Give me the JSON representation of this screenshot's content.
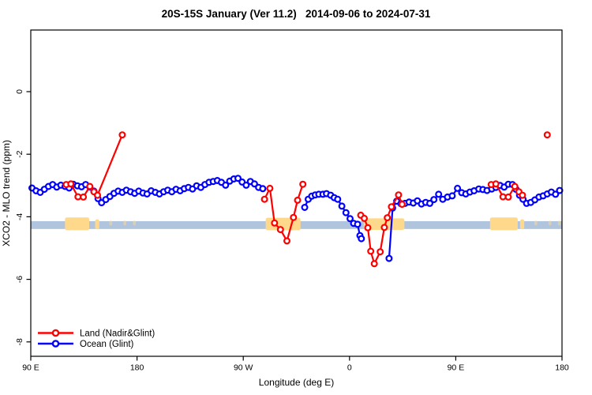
{
  "title": "20S-15S January (Ver 11.2)   2014-09-06 to 2024-07-31",
  "chart_data": {
    "type": "line",
    "title": "20S-15S January (Ver 11.2)   2014-09-06 to 2024-07-31",
    "xlabel": "Longitude (deg E)",
    "ylabel": "XCO2 - MLO trend (ppm)",
    "x_axis": {
      "range": [
        90,
        540
      ],
      "ticks": [
        {
          "lon": 90,
          "label": "90 E"
        },
        {
          "lon": 180,
          "label": "180"
        },
        {
          "lon": 270,
          "label": "90 W"
        },
        {
          "lon": 360,
          "label": "0"
        },
        {
          "lon": 450,
          "label": "90 E"
        },
        {
          "lon": 540,
          "label": "180"
        }
      ]
    },
    "y_axis": {
      "range": [
        -8.46,
        1.97
      ],
      "ticks": [
        0,
        -2,
        -4,
        -6,
        -8
      ]
    },
    "grid": "off",
    "legend_position": "bottom-left-inside",
    "legend": [
      {
        "label": "Land (Nadir&Glint)",
        "color": "#ff0000"
      },
      {
        "label": "Ocean (Glint)",
        "color": "#0000ff"
      }
    ],
    "band": {
      "color": "#b0c4de",
      "top": -4.14,
      "bottom": -4.39,
      "from": 90,
      "to": 540
    },
    "land_shading": {
      "color": "#ffd98b",
      "regions": [
        {
          "from": 119,
          "to": 139.5,
          "top": -4.02,
          "bottom": -4.43,
          "faint": false
        },
        {
          "from": 144.5,
          "to": 148,
          "top": -4.08,
          "bottom": -4.4,
          "faint": false
        },
        {
          "from": 156.5,
          "to": 159,
          "top": -4.12,
          "bottom": -4.28,
          "faint": true
        },
        {
          "from": 168.5,
          "to": 171,
          "top": -4.12,
          "bottom": -4.28,
          "faint": true
        },
        {
          "from": 176.5,
          "to": 179,
          "top": -4.12,
          "bottom": -4.28,
          "faint": true
        },
        {
          "from": 289,
          "to": 318.5,
          "top": -4.03,
          "bottom": -4.43,
          "faint": false
        },
        {
          "from": 372,
          "to": 406.5,
          "top": -4.05,
          "bottom": -4.42,
          "faint": false
        },
        {
          "from": 479,
          "to": 502.5,
          "top": -4.02,
          "bottom": -4.43,
          "faint": false
        },
        {
          "from": 504.5,
          "to": 508,
          "top": -4.08,
          "bottom": -4.4,
          "faint": false
        },
        {
          "from": 516.5,
          "to": 519,
          "top": -4.12,
          "bottom": -4.28,
          "faint": true
        },
        {
          "from": 528.5,
          "to": 531,
          "top": -4.12,
          "bottom": -4.28,
          "faint": true
        },
        {
          "from": 536.5,
          "to": 539,
          "top": -4.12,
          "bottom": -4.28,
          "faint": true
        }
      ]
    },
    "series": [
      {
        "name": "Ocean (Glint)",
        "color": "#0000ff",
        "segments": [
          [
            [
              91,
              -3.08
            ],
            [
              94.5,
              -3.17
            ],
            [
              98,
              -3.22
            ],
            [
              101.5,
              -3.12
            ],
            [
              105,
              -3.03
            ],
            [
              108.5,
              -2.97
            ],
            [
              112,
              -3.05
            ],
            [
              115.5,
              -2.99
            ],
            [
              119,
              -3.03
            ],
            [
              122.5,
              -3.08
            ],
            [
              126,
              -2.96
            ],
            [
              129.5,
              -3.01
            ],
            [
              133,
              -3.04
            ],
            [
              136.5,
              -2.97
            ],
            [
              140,
              -3.05
            ],
            [
              143.5,
              -3.18
            ],
            [
              147,
              -3.42
            ],
            [
              150,
              -3.55
            ],
            [
              153.5,
              -3.45
            ],
            [
              157,
              -3.35
            ],
            [
              160.5,
              -3.25
            ],
            [
              164,
              -3.18
            ],
            [
              167.5,
              -3.22
            ],
            [
              171,
              -3.15
            ],
            [
              174.5,
              -3.2
            ],
            [
              178,
              -3.25
            ],
            [
              181.5,
              -3.18
            ],
            [
              185,
              -3.24
            ],
            [
              188.5,
              -3.27
            ],
            [
              192,
              -3.17
            ],
            [
              195.5,
              -3.22
            ],
            [
              199,
              -3.27
            ],
            [
              202.5,
              -3.2
            ],
            [
              206,
              -3.15
            ],
            [
              209.5,
              -3.2
            ],
            [
              213,
              -3.12
            ],
            [
              216.5,
              -3.17
            ],
            [
              220,
              -3.1
            ],
            [
              223.5,
              -3.06
            ],
            [
              227,
              -3.11
            ],
            [
              230.5,
              -3.01
            ],
            [
              234,
              -3.06
            ],
            [
              237.5,
              -2.97
            ],
            [
              241,
              -2.9
            ],
            [
              244.5,
              -2.87
            ],
            [
              248,
              -2.84
            ],
            [
              251.5,
              -2.9
            ],
            [
              255,
              -2.99
            ],
            [
              258.5,
              -2.86
            ],
            [
              262,
              -2.79
            ],
            [
              265.5,
              -2.77
            ],
            [
              269,
              -2.89
            ],
            [
              272.5,
              -2.99
            ],
            [
              276,
              -2.87
            ],
            [
              279.5,
              -2.95
            ],
            [
              283,
              -3.06
            ],
            [
              286.5,
              -3.1
            ]
          ],
          [
            [
              322,
              -3.7
            ],
            [
              325,
              -3.44
            ],
            [
              328,
              -3.34
            ],
            [
              331,
              -3.3
            ],
            [
              334,
              -3.28
            ],
            [
              337.5,
              -3.28
            ],
            [
              340.5,
              -3.26
            ],
            [
              344,
              -3.31
            ],
            [
              347,
              -3.39
            ],
            [
              350,
              -3.44
            ],
            [
              353.5,
              -3.66
            ],
            [
              357,
              -3.87
            ],
            [
              360.5,
              -4.06
            ],
            [
              363.5,
              -4.21
            ],
            [
              366.8,
              -4.24
            ],
            [
              368.8,
              -4.6
            ],
            [
              370,
              -4.7
            ]
          ],
          [
            [
              393.5,
              -5.33
            ],
            [
              396.5,
              -3.72
            ],
            [
              400,
              -3.5
            ],
            [
              403.5,
              -3.58
            ],
            [
              407,
              -3.57
            ],
            [
              410.5,
              -3.53
            ],
            [
              414,
              -3.56
            ],
            [
              417.5,
              -3.49
            ],
            [
              421,
              -3.59
            ],
            [
              424.5,
              -3.54
            ],
            [
              428,
              -3.57
            ],
            [
              431.5,
              -3.45
            ],
            [
              435.5,
              -3.28
            ],
            [
              439,
              -3.44
            ],
            [
              443,
              -3.37
            ],
            [
              447,
              -3.33
            ],
            [
              451.5,
              -3.09
            ],
            [
              455,
              -3.23
            ],
            [
              458.5,
              -3.27
            ],
            [
              462,
              -3.21
            ],
            [
              465.5,
              -3.17
            ],
            [
              469.5,
              -3.11
            ],
            [
              473,
              -3.13
            ],
            [
              476.5,
              -3.16
            ],
            [
              480.5,
              -3.11
            ],
            [
              484,
              -3.06
            ],
            [
              487.5,
              -3.0
            ],
            [
              491,
              -3.05
            ],
            [
              494.5,
              -2.96
            ],
            [
              498,
              -2.97
            ],
            [
              501,
              -3.12
            ],
            [
              504,
              -3.31
            ],
            [
              507,
              -3.44
            ],
            [
              510,
              -3.57
            ],
            [
              513.5,
              -3.54
            ],
            [
              517,
              -3.46
            ],
            [
              520.5,
              -3.37
            ],
            [
              524,
              -3.33
            ],
            [
              527.5,
              -3.27
            ],
            [
              531,
              -3.21
            ],
            [
              534.5,
              -3.28
            ],
            [
              538,
              -3.16
            ]
          ]
        ]
      },
      {
        "name": "Land (Nadir&Glint)",
        "color": "#ff0000",
        "segments": [
          [
            [
              120,
              -2.97
            ],
            [
              124,
              -2.95
            ],
            [
              130,
              -3.36
            ],
            [
              134.5,
              -3.37
            ],
            [
              140,
              -3.03
            ],
            [
              143.5,
              -3.2
            ],
            [
              146.5,
              -3.31
            ],
            [
              167.5,
              -1.38
            ]
          ],
          [
            [
              288,
              -3.44
            ],
            [
              292.5,
              -3.09
            ],
            [
              296.5,
              -4.2
            ],
            [
              301.5,
              -4.41
            ],
            [
              307,
              -4.77
            ],
            [
              312.5,
              -4.02
            ],
            [
              316,
              -3.47
            ],
            [
              320.5,
              -2.96
            ]
          ],
          [
            [
              369.5,
              -3.95
            ],
            [
              372.5,
              -4.05
            ],
            [
              375.5,
              -4.35
            ],
            [
              378,
              -5.1
            ],
            [
              381,
              -5.5
            ],
            [
              386,
              -5.12
            ],
            [
              389.5,
              -4.34
            ],
            [
              392,
              -4.03
            ],
            [
              395.5,
              -3.68
            ],
            [
              401.5,
              -3.3
            ],
            [
              404.5,
              -3.6
            ]
          ],
          [
            [
              480,
              -2.97
            ],
            [
              484,
              -2.95
            ],
            [
              490,
              -3.36
            ],
            [
              494.5,
              -3.37
            ],
            [
              500,
              -3.03
            ],
            [
              503.5,
              -3.2
            ],
            [
              506.5,
              -3.31
            ]
          ],
          [
            [
              527.5,
              -1.38
            ]
          ]
        ]
      }
    ]
  }
}
